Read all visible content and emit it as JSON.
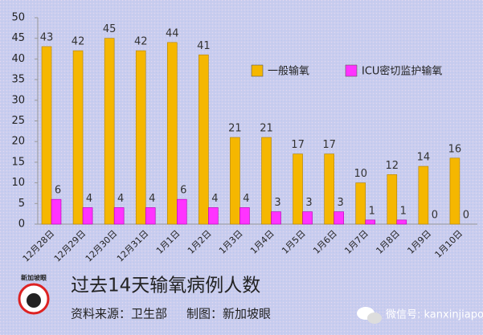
{
  "chart_data": {
    "type": "bar",
    "categories": [
      "12月28日",
      "12月29日",
      "12月30日",
      "12月31日",
      "1月1日",
      "1月2日",
      "1月3日",
      "1月4日",
      "1月5日",
      "1月6日",
      "1月7日",
      "1月8日",
      "1月9日",
      "1月10日"
    ],
    "series": [
      {
        "name": "一般输氧",
        "color": "#f5b700",
        "values": [
          43,
          42,
          45,
          42,
          44,
          41,
          21,
          21,
          17,
          17,
          10,
          12,
          14,
          16
        ]
      },
      {
        "name": "ICU密切监护输氧",
        "color": "#ff33ff",
        "values": [
          6,
          4,
          4,
          4,
          6,
          4,
          4,
          3,
          3,
          3,
          1,
          1,
          0,
          0
        ]
      }
    ],
    "ylim": [
      0,
      50
    ],
    "yticks": [
      0,
      5,
      10,
      15,
      20,
      25,
      30,
      35,
      40,
      45,
      50
    ],
    "grid": false,
    "legend": "top-right",
    "title": "过去14天输氧病例人数",
    "source": "资料来源：卫生部",
    "credit": "制图：新加坡眼",
    "logo_text": "新加坡眼",
    "watermark": "微信号: kanxinjiapo"
  }
}
